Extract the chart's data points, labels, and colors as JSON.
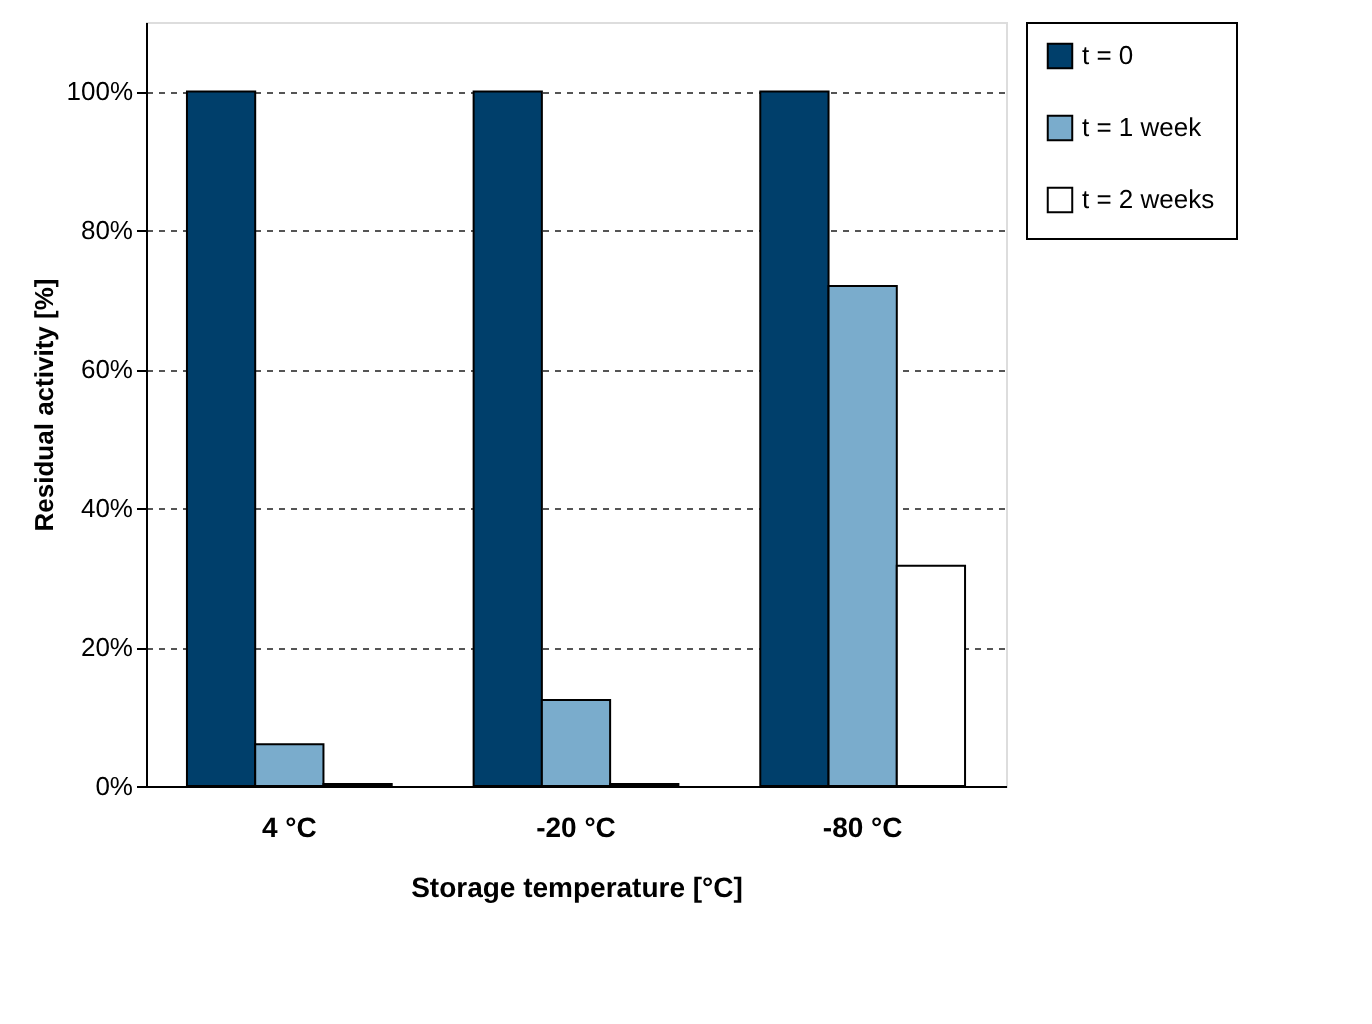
{
  "chart_data": {
    "type": "bar",
    "categories": [
      "4 °C",
      "-20 °C",
      "-80 °C"
    ],
    "series": [
      {
        "name": "t = 0",
        "color": "#003f6b",
        "values": [
          100,
          100,
          100
        ]
      },
      {
        "name": "t = 1 week",
        "color": "#7aaccc",
        "values": [
          6,
          12.4,
          72
        ]
      },
      {
        "name": "t = 2 weeks",
        "color": "#ffffff",
        "values": [
          0.3,
          0.3,
          31.7
        ]
      }
    ],
    "xlabel": "Storage temperature [°C]",
    "ylabel": "Residual activity [%]",
    "ylim": [
      0,
      110
    ],
    "yticks": [
      {
        "value": 0,
        "label": "0%"
      },
      {
        "value": 20,
        "label": "20%"
      },
      {
        "value": 40,
        "label": "40%"
      },
      {
        "value": 60,
        "label": "60%"
      },
      {
        "value": 80,
        "label": "80%"
      },
      {
        "value": 100,
        "label": "100%"
      }
    ],
    "grid": "y",
    "legend": "right"
  }
}
